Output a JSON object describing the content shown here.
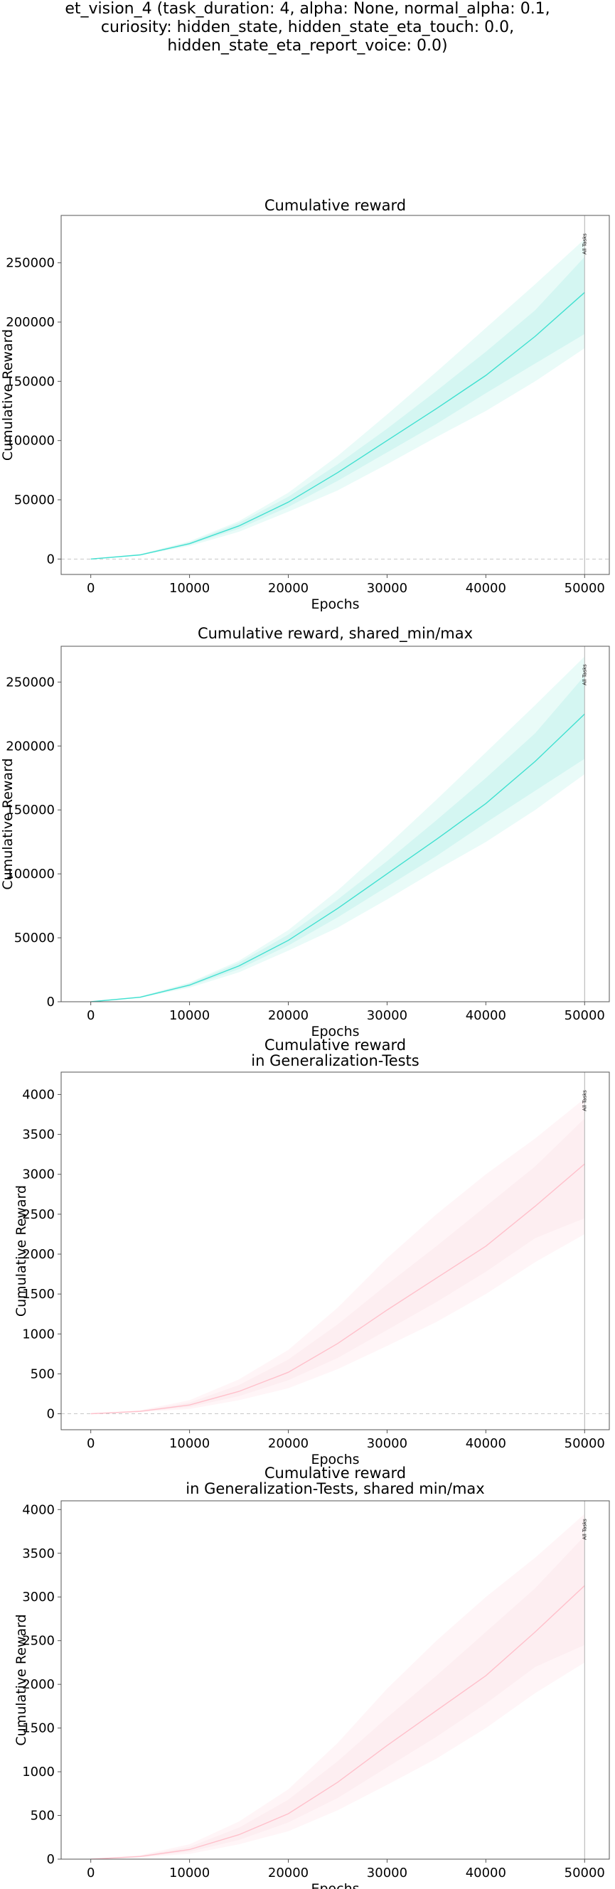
{
  "suptitle_lines": [
    "et_vision_4 (task_duration: 4, alpha: None, normal_alpha: 0.1,",
    "curiosity: hidden_state, hidden_state_eta_touch: 0.0,",
    "hidden_state_eta_report_voice: 0.0)"
  ],
  "colors": {
    "reward": "#40e0d0",
    "reward_band": "#d4f6f2",
    "reward_band_light": "#e9fbf8",
    "generalization": "#ffc0cb",
    "generalization_band": "#fdeef1",
    "generalization_band_light": "#fff5f7",
    "zero_line": "#c8c8c8",
    "marker_line": "#b0b0b0"
  },
  "chart_data": [
    {
      "type": "line",
      "title": [
        "Cumulative reward"
      ],
      "xlabel": "Epochs",
      "ylabel": "Cumulative Reward",
      "xlim": [
        -3000,
        52500
      ],
      "ylim": [
        -13000,
        290000
      ],
      "xticks": [
        0,
        10000,
        20000,
        30000,
        40000,
        50000
      ],
      "yticks": [
        0,
        50000,
        100000,
        150000,
        200000,
        250000
      ],
      "zero_line": true,
      "color_key": "reward",
      "marker": {
        "x": 50000,
        "label": "All Tasks"
      },
      "series": [
        {
          "x": [
            0,
            5000,
            10000,
            15000,
            20000,
            25000,
            30000,
            35000,
            40000,
            45000,
            50000
          ],
          "mean": [
            0,
            3500,
            13000,
            28000,
            48000,
            73000,
            100000,
            127000,
            155000,
            188000,
            225000
          ],
          "min": [
            0,
            3000,
            11000,
            23000,
            40000,
            58000,
            80000,
            103000,
            125000,
            150000,
            178000
          ],
          "max": [
            0,
            4200,
            15000,
            32000,
            56000,
            87000,
            122000,
            158000,
            195000,
            232000,
            270000
          ],
          "inner_low": [
            0,
            3300,
            12000,
            25500,
            44000,
            66000,
            90000,
            114000,
            140000,
            165000,
            190000
          ],
          "inner_high": [
            0,
            3900,
            14200,
            30500,
            52500,
            80000,
            110000,
            142000,
            175000,
            210000,
            255000
          ]
        }
      ]
    },
    {
      "type": "line",
      "title": [
        "Cumulative reward, shared_min/max"
      ],
      "xlabel": "Epochs",
      "ylabel": "Cumulative Reward",
      "xlim": [
        -3000,
        52500
      ],
      "ylim": [
        0,
        278000
      ],
      "xticks": [
        0,
        10000,
        20000,
        30000,
        40000,
        50000
      ],
      "yticks": [
        0,
        50000,
        100000,
        150000,
        200000,
        250000
      ],
      "zero_line": false,
      "color_key": "reward",
      "marker": {
        "x": 50000,
        "label": "All Tasks"
      },
      "series": [
        {
          "x": [
            0,
            5000,
            10000,
            15000,
            20000,
            25000,
            30000,
            35000,
            40000,
            45000,
            50000
          ],
          "mean": [
            0,
            3500,
            13000,
            28000,
            48000,
            73000,
            100000,
            127000,
            155000,
            188000,
            225000
          ],
          "min": [
            0,
            3000,
            11000,
            23000,
            40000,
            58000,
            80000,
            103000,
            125000,
            150000,
            178000
          ],
          "max": [
            0,
            4200,
            15000,
            32000,
            56000,
            87000,
            122000,
            158000,
            195000,
            232000,
            270000
          ],
          "inner_low": [
            0,
            3300,
            12000,
            25500,
            44000,
            66000,
            90000,
            114000,
            140000,
            165000,
            190000
          ],
          "inner_high": [
            0,
            3900,
            14200,
            30500,
            52500,
            80000,
            110000,
            142000,
            175000,
            210000,
            255000
          ]
        }
      ]
    },
    {
      "type": "line",
      "title": [
        "Cumulative reward",
        "in Generalization-Tests"
      ],
      "xlabel": "Epochs",
      "ylabel": "Cumulative Reward",
      "xlim": [
        -3000,
        52500
      ],
      "ylim": [
        -200,
        4280
      ],
      "xticks": [
        0,
        10000,
        20000,
        30000,
        40000,
        50000
      ],
      "yticks": [
        0,
        500,
        1000,
        1500,
        2000,
        2500,
        3000,
        3500,
        4000
      ],
      "zero_line": true,
      "color_key": "generalization",
      "marker": {
        "x": 50000,
        "label": "All Tasks"
      },
      "series": [
        {
          "x": [
            0,
            5000,
            10000,
            15000,
            20000,
            25000,
            30000,
            35000,
            40000,
            45000,
            50000
          ],
          "mean": [
            0,
            30,
            110,
            280,
            520,
            880,
            1300,
            1700,
            2100,
            2600,
            3130
          ],
          "min": [
            0,
            20,
            60,
            170,
            320,
            560,
            850,
            1150,
            1500,
            1900,
            2250
          ],
          "max": [
            0,
            45,
            170,
            430,
            800,
            1330,
            1950,
            2500,
            3000,
            3450,
            3950
          ],
          "inner_low": [
            0,
            25,
            85,
            220,
            420,
            700,
            1050,
            1400,
            1780,
            2200,
            2450
          ],
          "inner_high": [
            0,
            38,
            140,
            360,
            680,
            1120,
            1620,
            2100,
            2600,
            3100,
            3700
          ]
        }
      ]
    },
    {
      "type": "line",
      "title": [
        "Cumulative reward",
        "in Generalization-Tests, shared min/max"
      ],
      "xlabel": "Epochs",
      "ylabel": "Cumulative Reward",
      "xlim": [
        -3000,
        52500
      ],
      "ylim": [
        0,
        4100
      ],
      "xticks": [
        0,
        10000,
        20000,
        30000,
        40000,
        50000
      ],
      "yticks": [
        0,
        500,
        1000,
        1500,
        2000,
        2500,
        3000,
        3500,
        4000
      ],
      "zero_line": false,
      "color_key": "generalization",
      "marker": {
        "x": 50000,
        "label": "All Tasks"
      },
      "series": [
        {
          "x": [
            0,
            5000,
            10000,
            15000,
            20000,
            25000,
            30000,
            35000,
            40000,
            45000,
            50000
          ],
          "mean": [
            0,
            30,
            110,
            280,
            520,
            880,
            1300,
            1700,
            2100,
            2600,
            3130
          ],
          "min": [
            0,
            20,
            60,
            170,
            320,
            560,
            850,
            1150,
            1500,
            1900,
            2250
          ],
          "max": [
            0,
            45,
            170,
            430,
            800,
            1330,
            1950,
            2500,
            3000,
            3450,
            3950
          ],
          "inner_low": [
            0,
            25,
            85,
            220,
            420,
            700,
            1050,
            1400,
            1780,
            2200,
            2450
          ],
          "inner_high": [
            0,
            38,
            140,
            360,
            680,
            1120,
            1620,
            2100,
            2600,
            3100,
            3700
          ]
        }
      ]
    }
  ]
}
